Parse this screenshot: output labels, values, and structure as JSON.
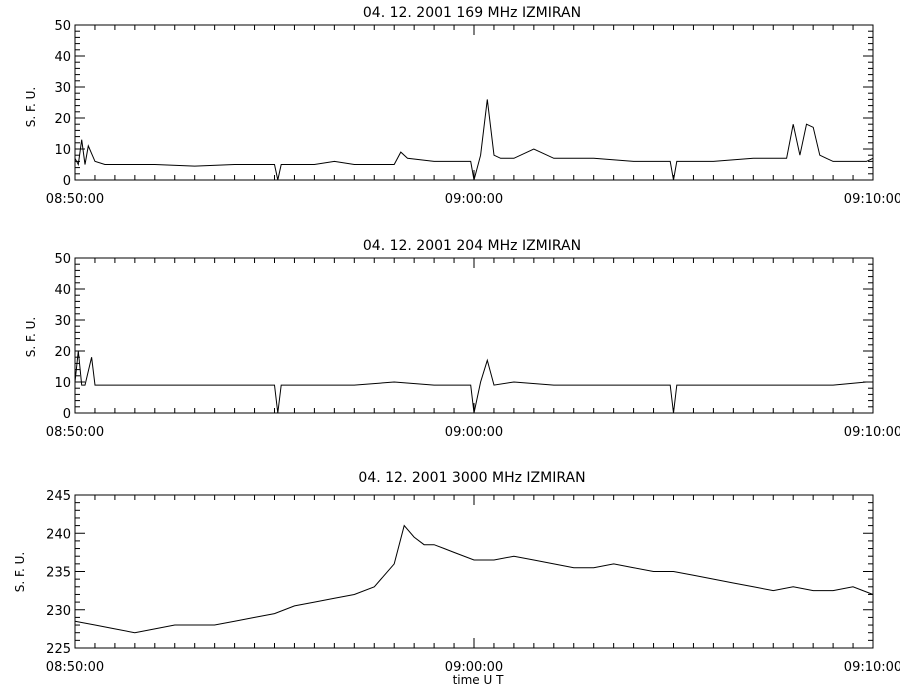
{
  "figure": {
    "xlabel": "time  U T"
  },
  "chart_data": [
    {
      "type": "line",
      "title": "04.  12.  2001    169 MHz    IZMIRAN",
      "ylabel": "S. F. U.",
      "xlabel": "",
      "xlim": [
        "08:50:00",
        "09:10:00"
      ],
      "ylim": [
        0,
        50
      ],
      "x_ticks": [
        "08:50:00",
        "09:00:00",
        "09:10:00"
      ],
      "y_ticks": [
        "0",
        "10",
        "20",
        "30",
        "40",
        "50"
      ],
      "grid": false,
      "series": [
        {
          "x": [
            "08:50:00",
            "08:50:05",
            "08:50:10",
            "08:50:15",
            "08:50:20",
            "08:50:30",
            "08:50:45",
            "08:51:00",
            "08:52:00",
            "08:53:00",
            "08:54:00",
            "08:55:00",
            "08:55:05",
            "08:55:10",
            "08:56:00",
            "08:56:30",
            "08:57:00",
            "08:58:00",
            "08:58:10",
            "08:58:20",
            "08:59:00",
            "08:59:55",
            "09:00:00",
            "09:00:10",
            "09:00:20",
            "09:00:30",
            "09:00:40",
            "09:01:00",
            "09:01:30",
            "09:02:00",
            "09:03:00",
            "09:04:00",
            "09:04:55",
            "09:05:00",
            "09:05:05",
            "09:06:00",
            "09:07:00",
            "09:07:50",
            "09:08:00",
            "09:08:10",
            "09:08:20",
            "09:08:30",
            "09:08:40",
            "09:08:50",
            "09:09:00",
            "09:09:30",
            "09:09:50",
            "09:10:00"
          ],
          "y": [
            7,
            5,
            13,
            5,
            11,
            6,
            5,
            5,
            5,
            4.5,
            5,
            5,
            0,
            5,
            5,
            6,
            5,
            5,
            9,
            7,
            6,
            6,
            0,
            8,
            26,
            8,
            7,
            7,
            10,
            7,
            7,
            6,
            6,
            0,
            6,
            6,
            7,
            7,
            18,
            8,
            18,
            17,
            8,
            7,
            6,
            6,
            6,
            7
          ]
        }
      ]
    },
    {
      "type": "line",
      "title": "04.  12.  2001    204 MHz    IZMIRAN",
      "ylabel": "S. F. U.",
      "xlabel": "",
      "xlim": [
        "08:50:00",
        "09:10:00"
      ],
      "ylim": [
        0,
        50
      ],
      "x_ticks": [
        "08:50:00",
        "09:00:00",
        "09:10:00"
      ],
      "y_ticks": [
        "0",
        "10",
        "20",
        "30",
        "40",
        "50"
      ],
      "grid": false,
      "series": [
        {
          "x": [
            "08:50:00",
            "08:50:05",
            "08:50:10",
            "08:50:15",
            "08:50:25",
            "08:50:30",
            "08:50:45",
            "08:51:00",
            "08:52:00",
            "08:53:00",
            "08:54:00",
            "08:55:00",
            "08:55:05",
            "08:55:10",
            "08:56:00",
            "08:57:00",
            "08:58:00",
            "08:59:00",
            "08:59:55",
            "09:00:00",
            "09:00:10",
            "09:00:20",
            "09:00:30",
            "09:01:00",
            "09:02:00",
            "09:03:00",
            "09:04:00",
            "09:04:55",
            "09:05:00",
            "09:05:05",
            "09:06:00",
            "09:07:00",
            "09:08:00",
            "09:09:00",
            "09:09:50",
            "09:10:00"
          ],
          "y": [
            10,
            20,
            9,
            9,
            18,
            9,
            9,
            9,
            9,
            9,
            9,
            9,
            0,
            9,
            9,
            9,
            10,
            9,
            9,
            0,
            10,
            17,
            9,
            10,
            9,
            9,
            9,
            9,
            0,
            9,
            9,
            9,
            9,
            9,
            10,
            10
          ]
        }
      ]
    },
    {
      "type": "line",
      "title": "04.  12.  2001    3000 MHz    IZMIRAN",
      "ylabel": "S. F. U.",
      "xlabel": "time  U T",
      "xlim": [
        "08:50:00",
        "09:10:00"
      ],
      "ylim": [
        225,
        245
      ],
      "x_ticks": [
        "08:50:00",
        "09:00:00",
        "09:10:00"
      ],
      "y_ticks": [
        "225",
        "230",
        "235",
        "240",
        "245"
      ],
      "grid": false,
      "series": [
        {
          "x": [
            "08:50:00",
            "08:50:30",
            "08:51:00",
            "08:51:30",
            "08:52:00",
            "08:52:30",
            "08:53:00",
            "08:53:30",
            "08:54:00",
            "08:54:30",
            "08:55:00",
            "08:55:30",
            "08:56:00",
            "08:56:30",
            "08:57:00",
            "08:57:30",
            "08:58:00",
            "08:58:15",
            "08:58:30",
            "08:58:45",
            "08:59:00",
            "08:59:15",
            "08:59:30",
            "09:00:00",
            "09:00:30",
            "09:01:00",
            "09:01:30",
            "09:02:00",
            "09:02:30",
            "09:03:00",
            "09:03:30",
            "09:04:00",
            "09:04:30",
            "09:05:00",
            "09:05:30",
            "09:06:00",
            "09:06:30",
            "09:07:00",
            "09:07:30",
            "09:08:00",
            "09:08:30",
            "09:09:00",
            "09:09:30",
            "09:10:00"
          ],
          "y": [
            228.5,
            228,
            227.5,
            227,
            227.5,
            228,
            228,
            228,
            228.5,
            229,
            229.5,
            230.5,
            231,
            231.5,
            232,
            233,
            236,
            241,
            239.5,
            238.5,
            238.5,
            238,
            237.5,
            236.5,
            236.5,
            237,
            236.5,
            236,
            235.5,
            235.5,
            236,
            235.5,
            235,
            235,
            234.5,
            234,
            233.5,
            233,
            232.5,
            233,
            232.5,
            232.5,
            233,
            232
          ]
        }
      ]
    }
  ]
}
